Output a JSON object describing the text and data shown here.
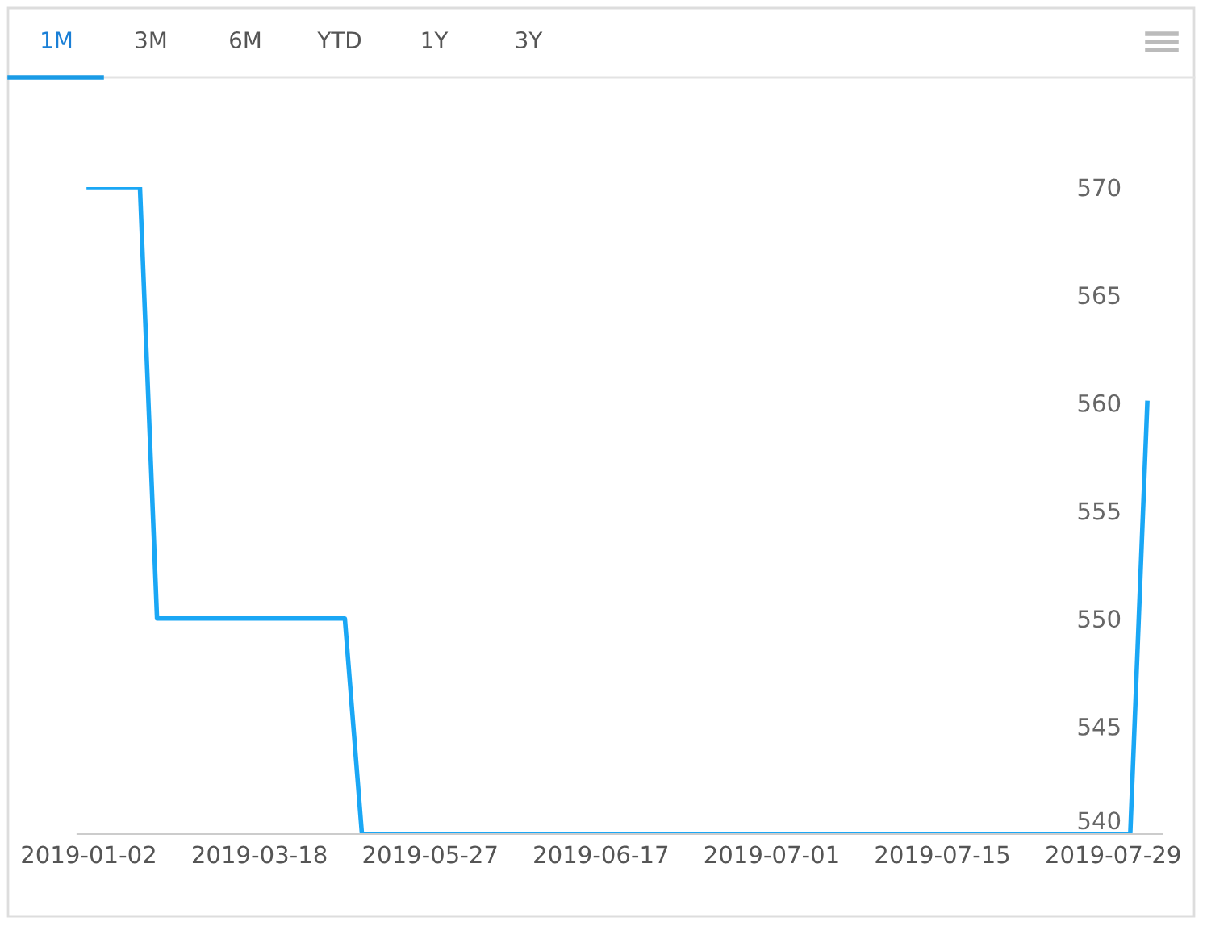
{
  "chart_data": {
    "type": "line",
    "annotations": [
      "1M",
      "3M",
      "6M",
      "YTD",
      "1Y",
      "3Y"
    ],
    "categories": [
      "2019-01-02",
      null,
      null,
      null,
      null,
      null,
      null,
      null,
      null,
      null,
      "2019-03-18",
      null,
      null,
      null,
      null,
      null,
      null,
      null,
      null,
      null,
      "2019-05-27",
      null,
      null,
      null,
      null,
      null,
      null,
      null,
      null,
      null,
      "2019-06-17",
      null,
      null,
      null,
      null,
      null,
      null,
      null,
      null,
      null,
      "2019-07-01",
      null,
      null,
      null,
      null,
      null,
      null,
      null,
      null,
      null,
      "2019-07-15",
      null,
      null,
      null,
      null,
      null,
      null,
      null,
      null,
      null,
      "2019-07-29",
      null,
      null
    ],
    "series": [
      {
        "color": "#1aa7f5",
        "values": [
          570,
          570,
          570,
          570,
          550,
          550,
          550,
          550,
          550,
          550,
          550,
          550,
          550,
          550,
          550,
          550,
          540,
          540,
          540,
          540,
          540,
          540,
          540,
          540,
          540,
          540,
          540,
          540,
          540,
          540,
          540,
          540,
          540,
          540,
          540,
          540,
          540,
          540,
          540,
          540,
          540,
          540,
          540,
          540,
          540,
          540,
          540,
          540,
          540,
          540,
          540,
          540,
          540,
          540,
          540,
          540,
          540,
          540,
          540,
          540,
          540,
          540,
          560
        ]
      }
    ],
    "ylim": [
      540,
      570
    ],
    "yticks": [
      540,
      545,
      550,
      555,
      560,
      565,
      570
    ],
    "grid": false,
    "legend": false,
    "marker": "none",
    "line_style": "solid"
  }
}
